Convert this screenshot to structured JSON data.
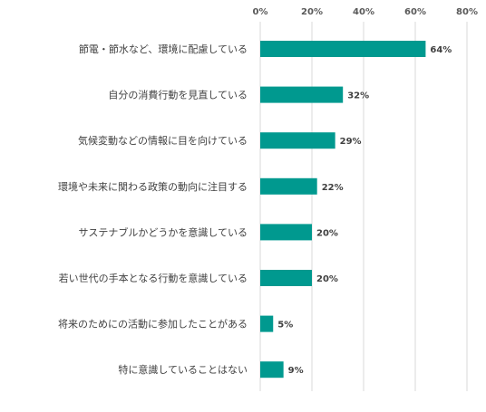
{
  "chart_data": {
    "type": "bar",
    "orientation": "horizontal",
    "categories": [
      "節電・節水など、環境に配慮している",
      "自分の消費行動を見直している",
      "気候変動などの情報に目を向けている",
      "環境や未来に関わる政策の動向に注目する",
      "サステナブルかどうかを意識している",
      "若い世代の手本となる行動を意識している",
      "将来のためにの活動に参加したことがある",
      "特に意識していることはない"
    ],
    "values": [
      64,
      32,
      29,
      22,
      20,
      20,
      5,
      9
    ],
    "data_labels": [
      "64%",
      "32%",
      "29%",
      "22%",
      "20%",
      "20%",
      "5%",
      "9%"
    ],
    "xlim": [
      0,
      80
    ],
    "x_ticks": [
      0,
      20,
      40,
      60,
      80
    ],
    "x_tick_labels": [
      "0%",
      "20%",
      "40%",
      "60%",
      "80%"
    ],
    "axis_position": "top",
    "grid": true,
    "bar_color": "#00998f",
    "title": "",
    "xlabel": "",
    "ylabel": ""
  }
}
